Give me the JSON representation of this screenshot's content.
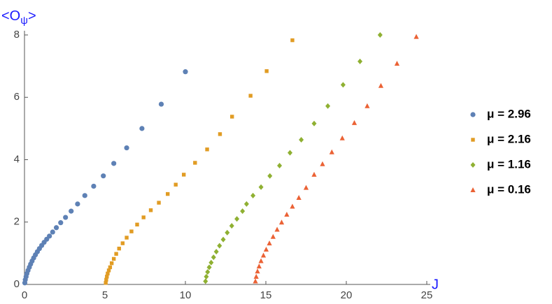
{
  "chart_data": {
    "type": "scatter",
    "xlabel": "J",
    "ylabel_parts": [
      "<O",
      "ψ",
      ">"
    ],
    "xlim": [
      0,
      25
    ],
    "ylim": [
      0,
      8
    ],
    "xticks": [
      0,
      5,
      10,
      15,
      20,
      25
    ],
    "yticks": [
      0,
      2,
      4,
      6,
      8
    ],
    "series": [
      {
        "name": "μ = 2.96",
        "color": "#5e81b5",
        "marker": "circle",
        "x": [
          0.02,
          0.05,
          0.1,
          0.15,
          0.22,
          0.3,
          0.38,
          0.47,
          0.57,
          0.68,
          0.8,
          0.93,
          1.07,
          1.22,
          1.38,
          1.55,
          1.75,
          1.98,
          2.25,
          2.55,
          2.9,
          3.3,
          3.75,
          4.3,
          4.9,
          5.55,
          6.35,
          7.3,
          8.5,
          10.0
        ],
        "values": [
          0.05,
          0.15,
          0.25,
          0.35,
          0.45,
          0.55,
          0.65,
          0.75,
          0.85,
          0.95,
          1.05,
          1.15,
          1.25,
          1.35,
          1.45,
          1.55,
          1.68,
          1.82,
          1.98,
          2.15,
          2.35,
          2.58,
          2.85,
          3.15,
          3.48,
          3.88,
          4.38,
          5.0,
          5.78,
          6.82
        ]
      },
      {
        "name": "μ = 2.16",
        "color": "#e19c24",
        "marker": "square",
        "x": [
          5.05,
          5.08,
          5.12,
          5.17,
          5.24,
          5.32,
          5.42,
          5.55,
          5.7,
          5.88,
          6.1,
          6.35,
          6.65,
          7.0,
          7.4,
          7.85,
          8.35,
          8.9,
          9.4,
          9.9,
          10.6,
          11.35,
          12.15,
          12.9,
          14.05,
          15.05,
          16.65
        ],
        "values": [
          0.05,
          0.15,
          0.25,
          0.35,
          0.45,
          0.55,
          0.68,
          0.82,
          0.98,
          1.15,
          1.32,
          1.5,
          1.7,
          1.92,
          2.15,
          2.38,
          2.62,
          2.9,
          3.2,
          3.52,
          3.9,
          4.33,
          4.82,
          5.38,
          6.05,
          6.84,
          7.83
        ]
      },
      {
        "name": "μ = 1.16",
        "color": "#8fb032",
        "marker": "diamond",
        "x": [
          11.25,
          11.3,
          11.38,
          11.48,
          11.6,
          11.75,
          11.92,
          12.12,
          12.35,
          12.6,
          12.88,
          13.2,
          13.55,
          13.8,
          14.2,
          14.7,
          15.25,
          15.85,
          16.5,
          17.2,
          18.0,
          18.85,
          19.8,
          20.85,
          22.1
        ],
        "values": [
          0.1,
          0.25,
          0.4,
          0.55,
          0.7,
          0.87,
          1.05,
          1.24,
          1.44,
          1.66,
          1.88,
          2.1,
          2.35,
          2.58,
          2.85,
          3.12,
          3.48,
          3.81,
          4.22,
          4.64,
          5.16,
          5.72,
          6.4,
          7.15,
          8.0
        ]
      },
      {
        "name": "μ = 0.16",
        "color": "#eb6235",
        "marker": "triangle",
        "x": [
          14.35,
          14.4,
          14.48,
          14.58,
          14.7,
          14.85,
          15.02,
          15.22,
          15.45,
          15.7,
          15.98,
          16.3,
          16.65,
          17.05,
          17.5,
          18.0,
          18.52,
          19.1,
          19.75,
          20.5,
          21.3,
          22.15,
          23.15,
          24.35
        ],
        "values": [
          0.1,
          0.25,
          0.42,
          0.58,
          0.75,
          0.93,
          1.12,
          1.32,
          1.53,
          1.76,
          1.99,
          2.24,
          2.5,
          2.78,
          3.1,
          3.52,
          3.86,
          4.24,
          4.69,
          5.18,
          5.72,
          6.37,
          7.08,
          7.94
        ]
      }
    ]
  }
}
